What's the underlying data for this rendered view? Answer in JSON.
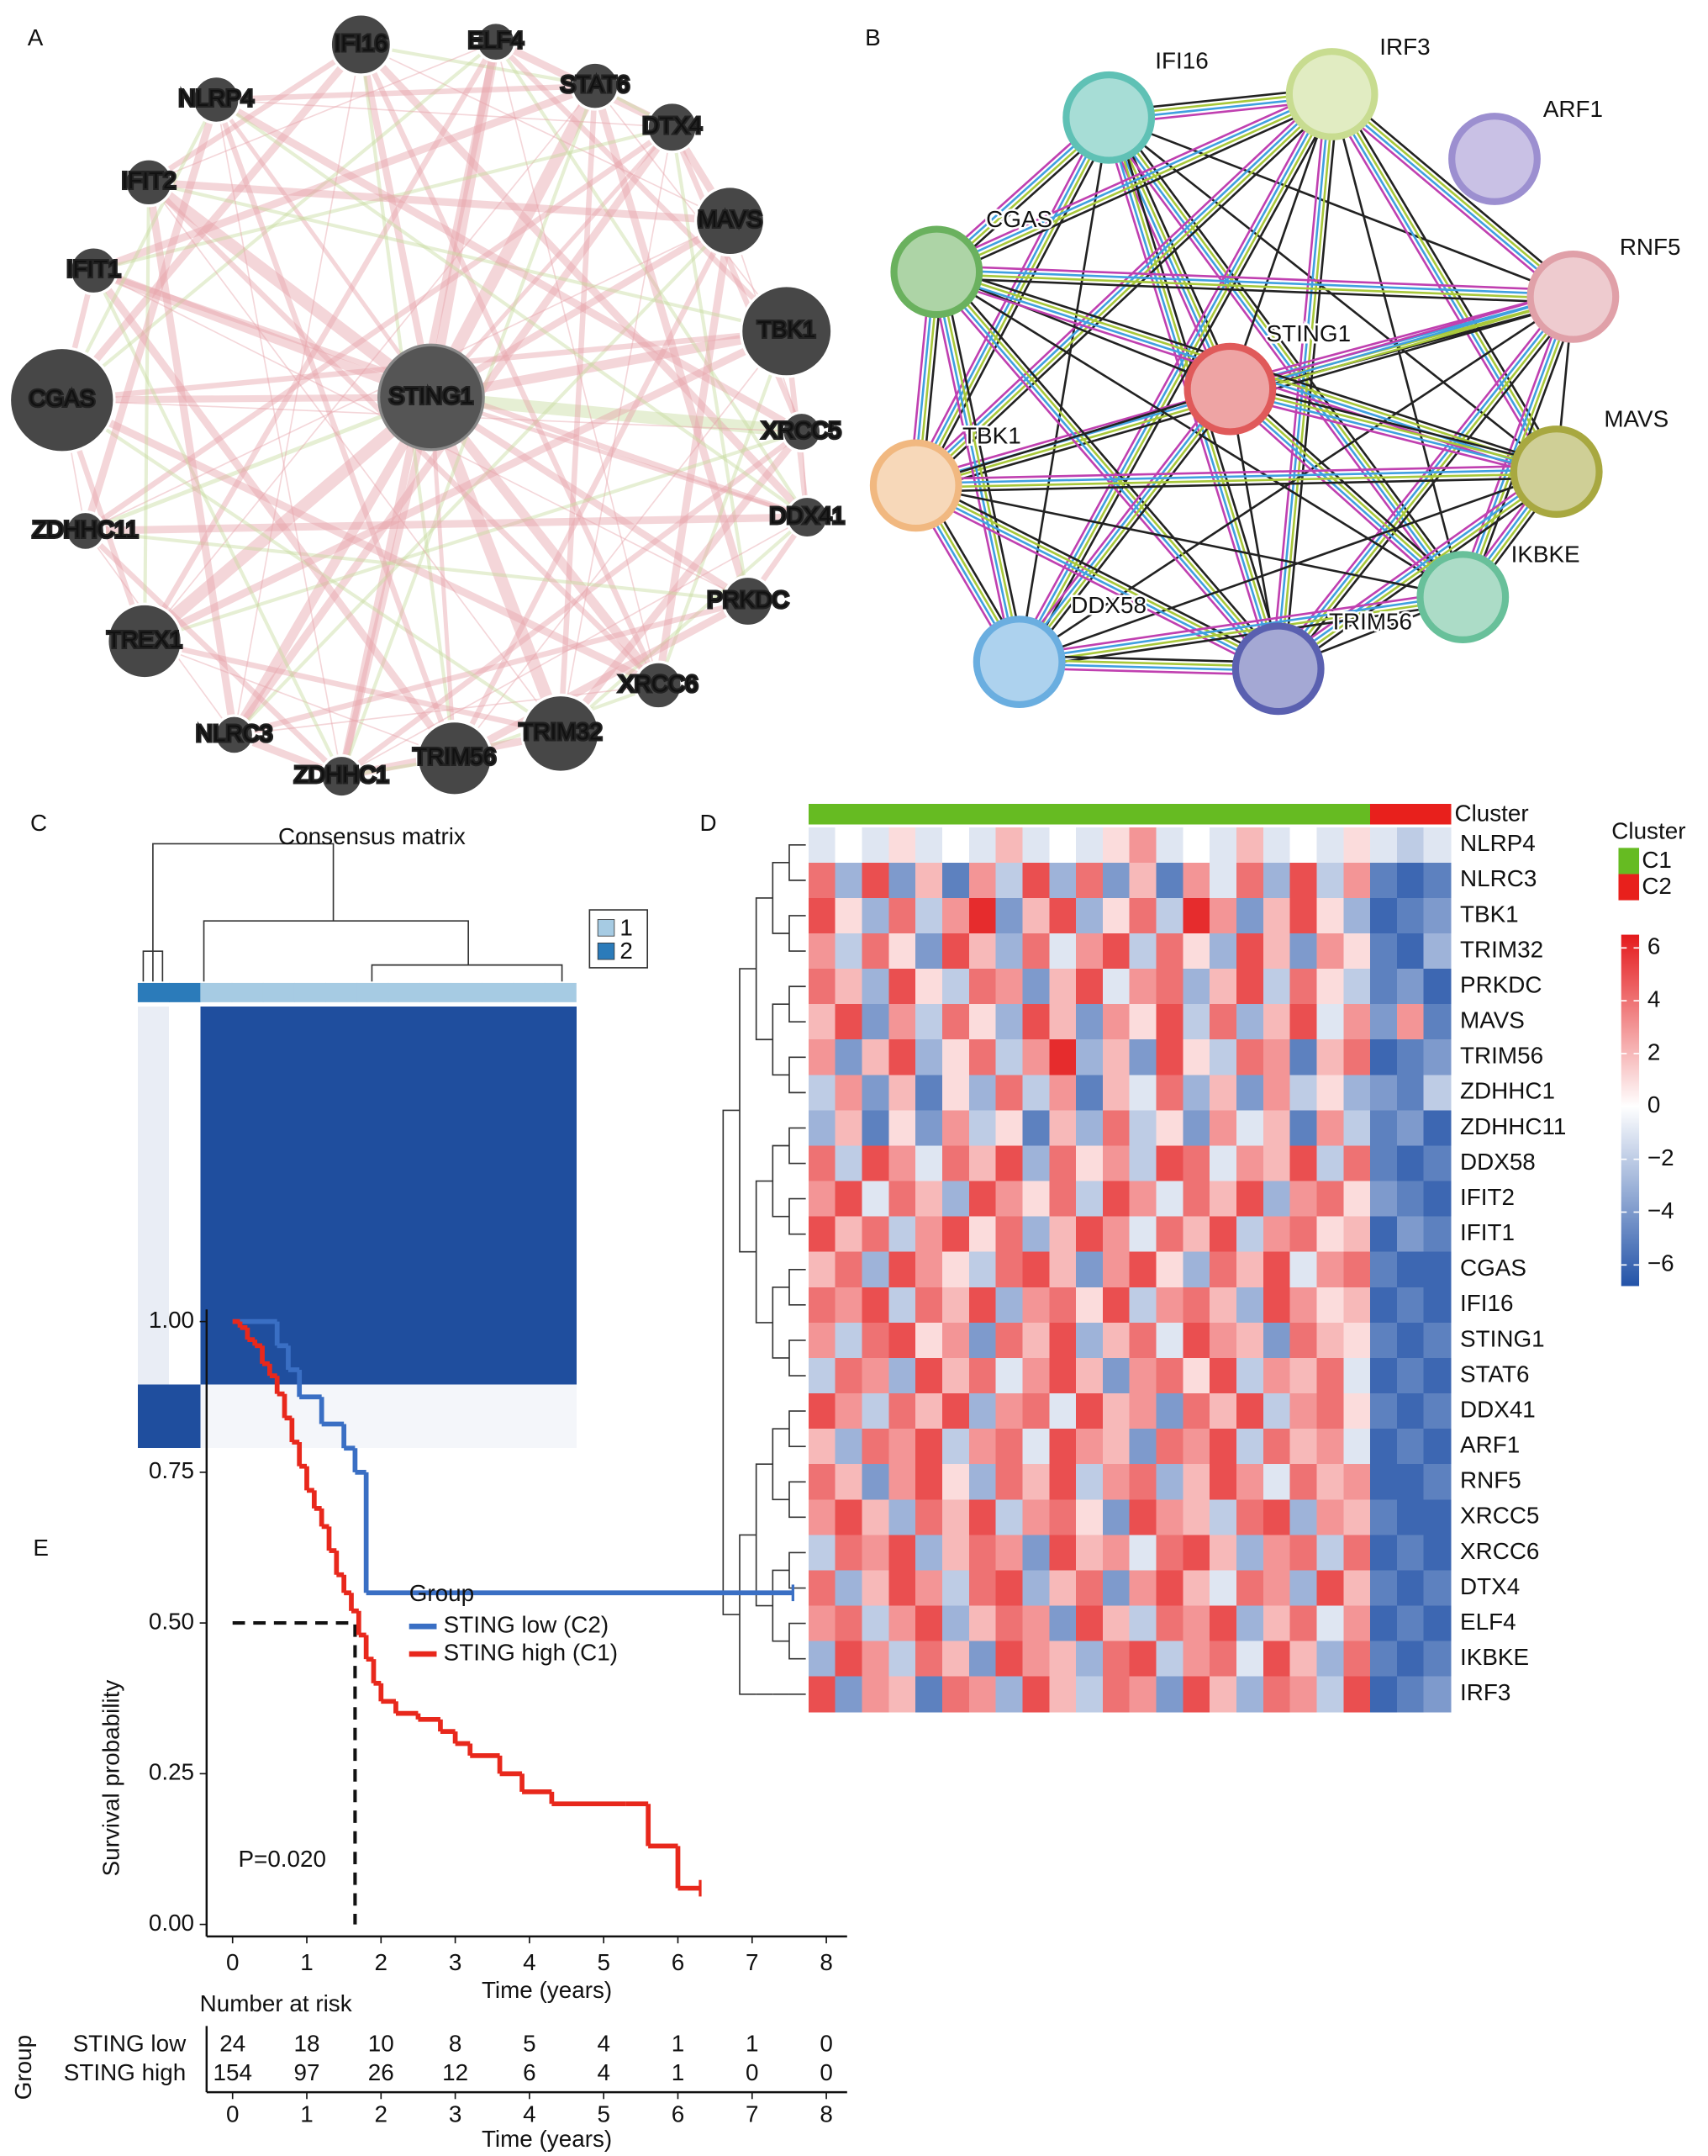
{
  "chart_data": [
    {
      "type": "network",
      "panel": "A",
      "nodes": [
        "STING1",
        "IFI16",
        "ELF4",
        "STAT6",
        "DTX4",
        "MAVS",
        "TBK1",
        "XRCC5",
        "DDX41",
        "PRKDC",
        "XRCC6",
        "TRIM32",
        "TRIM56",
        "ZDHHC1",
        "NLRC3",
        "TREX1",
        "ZDHHC11",
        "CGAS",
        "IFIT1",
        "IFIT2",
        "NLRP4"
      ]
    },
    {
      "type": "network",
      "panel": "B",
      "nodes": [
        "IFI16",
        "IRF3",
        "ARF1",
        "RNF5",
        "CGAS",
        "STING1",
        "MAVS",
        "TBK1",
        "IKBKE",
        "DDX58",
        "TRIM56"
      ],
      "colors": [
        "#5fc1b5",
        "#c8dc90",
        "#9c8fd0",
        "#e0a0a8",
        "#6ab15e",
        "#e05a5a",
        "#a8a840",
        "#f1b880",
        "#68c09a",
        "#6aaee0",
        "#5a60b0"
      ]
    },
    {
      "type": "consensus",
      "panel": "C",
      "title": "Consensus matrix",
      "legend": {
        "labels": [
          "1",
          "2"
        ],
        "colors": [
          "#a6cbe3",
          "#2b7bba"
        ]
      },
      "column_clusters": [
        "2",
        "2",
        "1",
        "1",
        "1",
        "1",
        "1",
        "1",
        "1",
        "1",
        "1",
        "1",
        "1",
        "1"
      ],
      "color": "#1f4e9e",
      "values": [
        [
          0.1,
          0,
          1,
          1,
          1,
          1,
          1,
          1,
          1,
          1,
          1,
          1,
          1,
          1
        ],
        [
          0.1,
          0,
          1,
          1,
          1,
          1,
          1,
          1,
          1,
          1,
          1,
          1,
          1,
          1
        ],
        [
          0.1,
          0,
          1,
          1,
          1,
          1,
          1,
          1,
          1,
          1,
          1,
          1,
          1,
          1
        ],
        [
          0.1,
          0,
          1,
          1,
          1,
          1,
          1,
          1,
          1,
          1,
          1,
          1,
          1,
          1
        ],
        [
          0.1,
          0,
          1,
          1,
          1,
          1,
          1,
          1,
          1,
          1,
          1,
          1,
          1,
          1
        ],
        [
          0.1,
          0,
          1,
          1,
          1,
          1,
          1,
          1,
          1,
          1,
          1,
          1,
          1,
          1
        ],
        [
          0.1,
          0,
          1,
          1,
          1,
          1,
          1,
          1,
          1,
          1,
          1,
          1,
          1,
          1
        ],
        [
          0.1,
          0,
          1,
          1,
          1,
          1,
          1,
          1,
          1,
          1,
          1,
          1,
          1,
          1
        ],
        [
          0.1,
          0,
          1,
          1,
          1,
          1,
          1,
          1,
          1,
          1,
          1,
          1,
          1,
          1
        ],
        [
          0.1,
          0,
          1,
          1,
          1,
          1,
          1,
          1,
          1,
          1,
          1,
          1,
          1,
          1
        ],
        [
          0.1,
          0,
          1,
          1,
          1,
          1,
          1,
          1,
          1,
          1,
          1,
          1,
          1,
          1
        ],
        [
          0.1,
          0,
          1,
          1,
          1,
          1,
          1,
          1,
          1,
          1,
          1,
          1,
          1,
          1
        ],
        [
          1,
          1,
          0.05,
          0.05,
          0.05,
          0.05,
          0.05,
          0.05,
          0.05,
          0.05,
          0.05,
          0.05,
          0.05,
          0.05
        ],
        [
          1,
          1,
          0.05,
          0.05,
          0.05,
          0.05,
          0.05,
          0.05,
          0.05,
          0.05,
          0.05,
          0.05,
          0.05,
          0.05
        ]
      ]
    },
    {
      "type": "heatmap",
      "panel": "D",
      "annotation_label": "Cluster",
      "legend": {
        "title": "Cluster",
        "labels": [
          "C1",
          "C2"
        ],
        "colors": [
          "#66bb22",
          "#e8201c"
        ]
      },
      "column_clusters": [
        "C1",
        "C1",
        "C1",
        "C1",
        "C1",
        "C1",
        "C1",
        "C1",
        "C1",
        "C1",
        "C1",
        "C1",
        "C1",
        "C1",
        "C1",
        "C1",
        "C1",
        "C1",
        "C1",
        "C1",
        "C1",
        "C2",
        "C2",
        "C2"
      ],
      "rows": [
        "NLRP4",
        "NLRC3",
        "TBK1",
        "TRIM32",
        "PRKDC",
        "MAVS",
        "TRIM56",
        "ZDHHC1",
        "ZDHHC11",
        "DDX58",
        "IFIT2",
        "IFIT1",
        "CGAS",
        "IFI16",
        "STING1",
        "STAT6",
        "DDX41",
        "ARF1",
        "RNF5",
        "XRCC5",
        "XRCC6",
        "DTX4",
        "ELF4",
        "IKBKE",
        "IRF3"
      ],
      "colors": [
        "#2353a8",
        "#ffffff",
        "#e41a1c"
      ],
      "clim": [
        -6.8,
        6.5
      ],
      "cticks": [
        6,
        4,
        2,
        0,
        {
          "value": -2,
          "label": "−2"
        },
        {
          "value": -4,
          "label": "−4"
        },
        {
          "value": -6,
          "label": "−6"
        }
      ],
      "values": [
        [
          -1,
          0,
          -1,
          1,
          -1,
          0,
          -1,
          2,
          -1,
          0,
          -1,
          1,
          3,
          -1,
          0,
          -1,
          2,
          -1,
          0,
          -1,
          1,
          -1,
          -2,
          -1
        ],
        [
          4,
          -3,
          5,
          -4,
          2,
          -5,
          3,
          -2,
          5,
          -3,
          4,
          -4,
          2,
          -5,
          3,
          -1,
          4,
          -3,
          5,
          -2,
          3,
          -5,
          -6,
          -5
        ],
        [
          5,
          1,
          -3,
          4,
          -2,
          3,
          6,
          -4,
          2,
          5,
          -3,
          1,
          4,
          -2,
          6,
          3,
          -4,
          2,
          5,
          1,
          -3,
          -6,
          -5,
          -4
        ],
        [
          3,
          -2,
          4,
          1,
          -4,
          5,
          2,
          -3,
          4,
          -1,
          3,
          5,
          -2,
          4,
          1,
          -3,
          5,
          2,
          -4,
          3,
          1,
          -5,
          -6,
          -3
        ],
        [
          4,
          2,
          -3,
          5,
          1,
          -2,
          4,
          3,
          -4,
          2,
          5,
          -1,
          3,
          4,
          -3,
          2,
          5,
          -2,
          4,
          1,
          -2,
          -5,
          -4,
          -6
        ],
        [
          2,
          5,
          -4,
          3,
          -2,
          4,
          1,
          -3,
          5,
          2,
          -4,
          3,
          1,
          5,
          -2,
          4,
          -3,
          2,
          5,
          -1,
          3,
          -4,
          3,
          -5
        ],
        [
          3,
          -4,
          2,
          5,
          -3,
          1,
          4,
          -2,
          3,
          6,
          -3,
          2,
          -4,
          5,
          1,
          -2,
          4,
          3,
          -5,
          2,
          4,
          -6,
          -5,
          -4
        ],
        [
          -2,
          3,
          -4,
          2,
          -5,
          1,
          -3,
          4,
          -2,
          3,
          -5,
          2,
          -1,
          4,
          -3,
          2,
          -4,
          3,
          -2,
          1,
          -3,
          -4,
          -5,
          -2
        ],
        [
          -3,
          2,
          -5,
          1,
          -4,
          3,
          -2,
          1,
          -5,
          2,
          -3,
          4,
          -2,
          1,
          -4,
          3,
          -1,
          2,
          -5,
          3,
          -2,
          -5,
          -4,
          -6
        ],
        [
          4,
          -2,
          5,
          3,
          -1,
          4,
          2,
          5,
          -3,
          4,
          1,
          3,
          -2,
          5,
          4,
          -1,
          3,
          2,
          5,
          -2,
          4,
          -5,
          -6,
          -5
        ],
        [
          3,
          5,
          -1,
          4,
          2,
          -3,
          5,
          3,
          1,
          4,
          -2,
          5,
          3,
          -1,
          4,
          2,
          5,
          -3,
          3,
          4,
          1,
          -4,
          -5,
          -6
        ],
        [
          5,
          2,
          4,
          -2,
          3,
          5,
          1,
          4,
          -3,
          2,
          5,
          3,
          -1,
          4,
          2,
          5,
          -2,
          3,
          4,
          1,
          2,
          -6,
          -4,
          -5
        ],
        [
          2,
          4,
          -3,
          5,
          3,
          1,
          -2,
          4,
          5,
          2,
          -4,
          3,
          5,
          1,
          -3,
          4,
          2,
          5,
          -1,
          3,
          4,
          -5,
          -6,
          -6
        ],
        [
          4,
          3,
          5,
          -2,
          4,
          2,
          5,
          -3,
          3,
          4,
          1,
          5,
          -2,
          3,
          4,
          2,
          -3,
          5,
          3,
          1,
          2,
          -6,
          -5,
          -6
        ],
        [
          3,
          -2,
          4,
          5,
          1,
          3,
          -4,
          4,
          2,
          5,
          -3,
          2,
          4,
          -1,
          5,
          3,
          2,
          -4,
          4,
          2,
          1,
          -5,
          -6,
          -5
        ],
        [
          -2,
          4,
          3,
          -3,
          5,
          2,
          4,
          -1,
          3,
          5,
          2,
          -4,
          3,
          4,
          1,
          5,
          -2,
          3,
          2,
          4,
          -1,
          -6,
          -5,
          -6
        ],
        [
          5,
          3,
          -2,
          4,
          2,
          5,
          -3,
          3,
          4,
          -1,
          5,
          2,
          3,
          -4,
          4,
          2,
          5,
          -2,
          3,
          4,
          1,
          -5,
          -6,
          -5
        ],
        [
          2,
          -3,
          4,
          3,
          5,
          -2,
          3,
          4,
          -1,
          5,
          3,
          2,
          -4,
          4,
          3,
          5,
          -2,
          4,
          2,
          3,
          -1,
          -6,
          -5,
          -6
        ],
        [
          4,
          2,
          -4,
          3,
          5,
          1,
          -3,
          4,
          2,
          5,
          -2,
          3,
          4,
          -3,
          2,
          5,
          3,
          -1,
          4,
          2,
          3,
          -6,
          -6,
          -5
        ],
        [
          3,
          5,
          2,
          -3,
          4,
          2,
          5,
          -2,
          3,
          4,
          1,
          -4,
          5,
          3,
          2,
          -2,
          4,
          5,
          -3,
          3,
          2,
          -5,
          -6,
          -6
        ],
        [
          -2,
          4,
          3,
          5,
          -3,
          2,
          4,
          3,
          -4,
          5,
          2,
          3,
          -1,
          4,
          5,
          2,
          -3,
          3,
          4,
          -2,
          4,
          -6,
          -5,
          -6
        ],
        [
          4,
          -3,
          2,
          5,
          3,
          -2,
          4,
          5,
          -3,
          2,
          4,
          -4,
          3,
          5,
          2,
          -1,
          4,
          3,
          -3,
          5,
          2,
          -5,
          -6,
          -5
        ],
        [
          3,
          4,
          -2,
          3,
          5,
          -3,
          2,
          4,
          3,
          -4,
          5,
          2,
          -2,
          4,
          3,
          5,
          -3,
          2,
          4,
          -1,
          3,
          -6,
          -5,
          -6
        ],
        [
          -3,
          5,
          3,
          -2,
          4,
          2,
          -4,
          5,
          3,
          2,
          -3,
          4,
          5,
          -2,
          3,
          4,
          -1,
          5,
          2,
          -3,
          4,
          -5,
          -6,
          -5
        ],
        [
          5,
          -4,
          3,
          2,
          -5,
          4,
          3,
          -3,
          5,
          2,
          -2,
          4,
          3,
          -4,
          5,
          2,
          -3,
          4,
          3,
          -2,
          5,
          -6,
          -5,
          -4
        ]
      ]
    },
    {
      "type": "survival",
      "panel": "E",
      "x_label": "Time (years)",
      "y_label": "Survival probability",
      "legend_title": "Group",
      "annotation": "P=0.020",
      "xlim": [
        -0.35,
        8.28
      ],
      "ylim": [
        -0.02,
        1.02
      ],
      "xticks": [
        0,
        1,
        2,
        3,
        4,
        5,
        6,
        7,
        8
      ],
      "yticks": [
        {
          "value": 0,
          "label": "0.00"
        },
        {
          "value": 0.25,
          "label": "0.25"
        },
        {
          "value": 0.5,
          "label": "0.50"
        },
        {
          "value": 0.75,
          "label": "0.75"
        },
        {
          "value": 1,
          "label": "1.00"
        }
      ],
      "median": {
        "time": 1.65,
        "survival": 0.5
      },
      "series": [
        {
          "name": "STING low (C2)",
          "color": "#3a6fc4",
          "x": [
            0,
            0.6,
            0.75,
            0.9,
            1.2,
            1.5,
            1.65,
            1.8,
            7.55
          ],
          "values": [
            1,
            0.96,
            0.92,
            0.875,
            0.83,
            0.79,
            0.75,
            0.55,
            0.55
          ]
        },
        {
          "name": "STING high (C1)",
          "color": "#e8281c",
          "x": [
            0,
            0.1,
            0.2,
            0.3,
            0.4,
            0.5,
            0.6,
            0.7,
            0.8,
            0.9,
            1.0,
            1.1,
            1.2,
            1.3,
            1.4,
            1.5,
            1.6,
            1.7,
            1.8,
            1.9,
            2.0,
            2.2,
            2.5,
            2.8,
            3.0,
            3.2,
            3.6,
            3.9,
            4.3,
            5.3,
            5.6,
            6.0,
            6.3
          ],
          "values": [
            1,
            0.99,
            0.97,
            0.96,
            0.93,
            0.91,
            0.88,
            0.84,
            0.8,
            0.76,
            0.72,
            0.69,
            0.66,
            0.62,
            0.58,
            0.55,
            0.52,
            0.48,
            0.44,
            0.4,
            0.37,
            0.35,
            0.34,
            0.32,
            0.3,
            0.28,
            0.25,
            0.22,
            0.2,
            0.2,
            0.13,
            0.06,
            0.06
          ]
        }
      ],
      "risk_table": {
        "title": "Number at risk",
        "group_label": "Group",
        "x_label": "Time (years)",
        "rows": [
          {
            "name": "STING low",
            "color": "#3a6fc4",
            "values": [
              24,
              18,
              10,
              8,
              5,
              4,
              1,
              1,
              0
            ]
          },
          {
            "name": "STING high",
            "color": "#e8281c",
            "values": [
              154,
              97,
              26,
              12,
              6,
              4,
              1,
              0,
              0
            ]
          }
        ]
      }
    }
  ]
}
